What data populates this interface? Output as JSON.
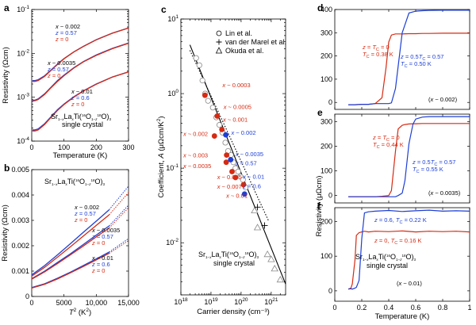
{
  "colors": {
    "black": "#000000",
    "blue": "#1d3fd6",
    "red": "#d62a12",
    "grey": "#888888"
  },
  "chart_data": [
    {
      "panel": "a",
      "type": "line",
      "ylog": true,
      "xlabel": "Temperature (K)",
      "ylabel": "Resistivity (Ωcm)",
      "xlim": [
        0,
        300
      ],
      "ylim": [
        0.0001,
        0.1
      ],
      "xticks": [
        "0",
        "100",
        "200",
        "300"
      ],
      "yticks": [
        "10^-4",
        "10^-3",
        "10^-2",
        "10^-1"
      ],
      "text": {
        "sample": "Sr1−xLaxTi(16O1−z18O)3",
        "crystal": "single crystal"
      },
      "groups": [
        {
          "x_label": "x ~ 0.002",
          "z1": "z = 0.57",
          "z0": "z = 0",
          "x": [
            2,
            10,
            20,
            40,
            60,
            80,
            100,
            130,
            160,
            200,
            250,
            300
          ],
          "series": [
            {
              "color": "blue",
              "values": [
                0.0024,
                0.0024,
                0.0025,
                0.0031,
                0.0042,
                0.0057,
                0.0076,
                0.0108,
                0.0145,
                0.0205,
                0.029,
                0.038
              ]
            },
            {
              "color": "red",
              "values": [
                0.0023,
                0.0023,
                0.0024,
                0.003,
                0.0041,
                0.0056,
                0.0075,
                0.0107,
                0.0143,
                0.0203,
                0.0288,
                0.0378
              ]
            }
          ]
        },
        {
          "x_label": "x ~ 0.0035",
          "z1": "z = 0.57",
          "z0": "z = 0",
          "x": [
            2,
            10,
            20,
            40,
            60,
            80,
            100,
            130,
            160,
            200,
            250,
            300
          ],
          "series": [
            {
              "color": "blue",
              "values": [
                0.00085,
                0.00086,
                0.00092,
                0.0012,
                0.0017,
                0.0024,
                0.0032,
                0.0047,
                0.0065,
                0.0092,
                0.013,
                0.0172
              ]
            },
            {
              "color": "red",
              "values": [
                0.00082,
                0.00083,
                0.00089,
                0.00116,
                0.00165,
                0.0023,
                0.0031,
                0.0046,
                0.0064,
                0.009,
                0.0128,
                0.017
              ]
            }
          ]
        },
        {
          "x_label": "x ~ 0.01",
          "z1": "z = 0.6",
          "z0": "z = 0",
          "x": [
            2,
            10,
            20,
            40,
            60,
            80,
            100,
            130,
            160,
            200,
            250,
            300
          ],
          "series": [
            {
              "color": "blue",
              "values": [
                0.00018,
                0.00018,
                0.00019,
                0.00025,
                0.00036,
                0.00052,
                0.0007,
                0.00102,
                0.0014,
                0.002,
                0.0029,
                0.0038
              ]
            },
            {
              "color": "red",
              "values": [
                0.00017,
                0.00017,
                0.00018,
                0.00024,
                0.00035,
                0.0005,
                0.00068,
                0.001,
                0.00138,
                0.00198,
                0.00288,
                0.00378
              ]
            }
          ]
        }
      ]
    },
    {
      "panel": "b",
      "type": "line",
      "xlabel": "T² (K²)",
      "ylabel": "Resistivity (Ωcm)",
      "xlim": [
        0,
        15000
      ],
      "ylim": [
        0,
        0.005
      ],
      "xticks": [
        "0",
        "5000",
        "10,000",
        "15,000"
      ],
      "yticks": [
        "0",
        "0.001",
        "0.002",
        "0.003",
        "0.004",
        "0.005"
      ],
      "text": {
        "sample": "Sr1−xLaxTi(16O1−z18O)3"
      },
      "groups": [
        {
          "x_label": "x ~ 0.002",
          "z1": "z = 0.57",
          "z0": "z = 0",
          "fit_end": [
            0.00435,
            0.0041
          ],
          "x": [
            0,
            2000,
            4000,
            6000,
            8000,
            10000,
            12000
          ],
          "series": [
            {
              "color": "blue",
              "values": [
                0.00085,
                0.00122,
                0.00164,
                0.00208,
                0.00253,
                0.00297,
                0.00342
              ]
            },
            {
              "color": "red",
              "values": [
                0.0008,
                0.00115,
                0.00155,
                0.00196,
                0.00238,
                0.0028,
                0.00322
              ]
            }
          ]
        },
        {
          "x_label": "x ~ 0.0035",
          "z1": "z = 0.57",
          "z0": "z = 0",
          "fit_end": [
            0.0036,
            0.0035
          ],
          "x": [
            0,
            2000,
            4000,
            6000,
            8000,
            10000,
            12000
          ],
          "series": [
            {
              "color": "blue",
              "values": [
                0.0007,
                0.001,
                0.00134,
                0.00168,
                0.00205,
                0.00242,
                0.00278
              ]
            },
            {
              "color": "red",
              "values": [
                0.00068,
                0.00097,
                0.0013,
                0.00164,
                0.00199,
                0.00235,
                0.0027
              ]
            }
          ]
        },
        {
          "x_label": "x ~ 0.01",
          "z1": "z = 0.6",
          "z0": "z = 0",
          "fit_end": [
            0.00228,
            0.0022
          ],
          "x": [
            0,
            2000,
            4000,
            6000,
            8000,
            10000,
            12000
          ],
          "series": [
            {
              "color": "blue",
              "values": [
                0.00035,
                0.0005,
                0.00072,
                0.00096,
                0.00122,
                0.00148,
                0.00175
              ]
            },
            {
              "color": "red",
              "values": [
                0.00033,
                0.00048,
                0.00069,
                0.00093,
                0.00118,
                0.00144,
                0.0017
              ]
            }
          ]
        }
      ]
    },
    {
      "panel": "c",
      "type": "scatter",
      "xlog": true,
      "ylog": true,
      "xlabel": "Carrier density (cm⁻³)",
      "ylabel": "Coefficient, A  (μΩcm/K²)",
      "xlim": [
        1e+18,
        3e+21
      ],
      "ylim": [
        0.002,
        10
      ],
      "xticks": [
        "10^18",
        "10^19",
        "10^20",
        "10^21"
      ],
      "yticks": [
        "10^-2",
        "10^-1",
        "10^0",
        "10^1"
      ],
      "legend": [
        "Lin et al.",
        "van der Marel et al.",
        "Okuda et al."
      ],
      "text": {
        "sample": "Sr1−xLaxTi(16O1−z18O)3",
        "crystal": "single crystal"
      },
      "circles": [
        [
          3.2e+18,
          3.0
        ],
        [
          4.1e+18,
          2.4
        ],
        [
          5.2e+18,
          1.5
        ],
        [
          6.4e+18,
          1.0
        ],
        [
          8e+18,
          0.8
        ],
        [
          1.15e+19,
          0.65
        ],
        [
          1.5e+19,
          0.48
        ],
        [
          1.9e+19,
          0.38
        ],
        [
          2.4e+19,
          0.3
        ],
        [
          3e+19,
          0.22
        ],
        [
          3.7e+19,
          0.17
        ],
        [
          4.6e+19,
          0.15
        ],
        [
          5.5e+19,
          0.12
        ],
        [
          6.5e+19,
          0.1
        ],
        [
          8e+19,
          0.09
        ],
        [
          9.5e+19,
          0.077
        ],
        [
          1.15e+20,
          0.07
        ],
        [
          1.4e+20,
          0.055
        ]
      ],
      "plus": [
        [
          3.5e+20,
          0.03
        ],
        [
          6e+20,
          0.017
        ]
      ],
      "triangles": [
        [
          2.8e+20,
          0.027
        ],
        [
          3.5e+20,
          0.016
        ],
        [
          7.5e+20,
          0.007
        ],
        [
          1e+21,
          0.006
        ],
        [
          1.3e+21,
          0.0045
        ],
        [
          2e+21,
          0.0032
        ]
      ],
      "red": [
        [
          6.3e+18,
          0.95
        ],
        [
          1.6e+19,
          0.5
        ],
        [
          2.3e+19,
          0.33
        ],
        [
          1.3e+19,
          0.27
        ],
        [
          3.3e+19,
          0.15
        ],
        [
          3.2e+19,
          0.12
        ],
        [
          5e+19,
          0.09
        ],
        [
          6.5e+19,
          0.075
        ],
        [
          1.2e+20,
          0.06
        ]
      ],
      "blue": [
        [
          3.1e+19,
          0.28
        ],
        [
          4.5e+19,
          0.13
        ],
        [
          1.3e+20,
          0.045
        ]
      ],
      "fit_solid": [
        [
          2e+18,
          4.5
        ],
        [
          3e+21,
          0.0028
        ]
      ],
      "fit_dotted": [
        [
          2e+18,
          3.8
        ],
        [
          8e+20,
          0.02
        ]
      ],
      "labels": [
        {
          "text": "x ~ 0.0003",
          "color": "red",
          "x": 2.4e+19,
          "y": 1.22
        },
        {
          "text": "x ~ 0.0005",
          "color": "red",
          "x": 2.6e+19,
          "y": 0.62
        },
        {
          "text": "x ~ 0.001",
          "color": "red",
          "x": 2.5e+19,
          "y": 0.42
        },
        {
          "text": "x ~ 0.002",
          "color": "blue",
          "x": 4.7e+19,
          "y": 0.28
        },
        {
          "text": "x ~ 0.002",
          "color": "red",
          "x": 1.2e+18,
          "y": 0.27
        },
        {
          "text": "x ~ 0.0035",
          "color": "blue",
          "x": 6.5e+19,
          "y": 0.145
        },
        {
          "text": "z = 0.57",
          "color": "blue",
          "x": 6.5e+19,
          "y": 0.11
        },
        {
          "text": "x ~ 0.003",
          "color": "red",
          "x": 1.2e+18,
          "y": 0.14
        },
        {
          "text": "x ~ 0.0035",
          "color": "red",
          "x": 1.2e+18,
          "y": 0.1
        },
        {
          "text": "x ~ 0.005",
          "color": "red",
          "x": 1.6e+19,
          "y": 0.071
        },
        {
          "text": "x ~ 0.007",
          "color": "red",
          "x": 1.6e+19,
          "y": 0.053
        },
        {
          "text": "x ~ 0.01",
          "color": "blue",
          "x": 1.15e+20,
          "y": 0.072
        },
        {
          "text": "z = 0.6",
          "color": "blue",
          "x": 1.15e+20,
          "y": 0.054
        },
        {
          "text": "x ~ 0.01",
          "color": "red",
          "x": 3.2e+19,
          "y": 0.04
        }
      ]
    },
    {
      "panel": "d",
      "type": "line",
      "xlim": [
        0,
        1
      ],
      "ylim": [
        -30,
        400
      ],
      "yticks": [
        "0",
        "100",
        "200",
        "300",
        "400"
      ],
      "ann": {
        "text": "(x ~ 0.002)"
      },
      "red_label": [
        "z = 0",
        "TC = 0.38 K"
      ],
      "blue_label": [
        "z = 0.57",
        "TC = 0.50 K"
      ],
      "x": [
        0.1,
        0.15,
        0.2,
        0.25,
        0.3,
        0.35,
        0.38,
        0.4,
        0.42,
        0.45,
        0.5,
        0.55,
        0.6,
        0.65,
        0.7,
        0.8,
        0.9,
        1.0
      ],
      "series": [
        {
          "color": "red",
          "values": [
            -10,
            -10,
            -8,
            -8,
            -5,
            20,
            150,
            260,
            290,
            295,
            295,
            296,
            296,
            297,
            297,
            298,
            298,
            298
          ]
        },
        {
          "color": "blue",
          "values": [
            -10,
            -10,
            -8,
            -8,
            -5,
            -5,
            -5,
            -5,
            -2,
            60,
            300,
            385,
            393,
            395,
            396,
            397,
            397,
            397
          ]
        }
      ]
    },
    {
      "panel": "e",
      "type": "line",
      "ylabel": "Resistivity (μΩcm)",
      "xlim": [
        0,
        1
      ],
      "ylim": [
        -30,
        330
      ],
      "yticks": [
        "0",
        "100",
        "200",
        "300"
      ],
      "ann": {
        "text": "(x ~ 0.0035)"
      },
      "red_label": [
        "z = 0",
        "TC = 0.44 K"
      ],
      "blue_label": [
        "z = 0.57",
        "TC = 0.55 K"
      ],
      "x": [
        0.1,
        0.2,
        0.3,
        0.35,
        0.4,
        0.42,
        0.45,
        0.47,
        0.5,
        0.52,
        0.55,
        0.58,
        0.6,
        0.65,
        0.7,
        0.8,
        0.9,
        1.0
      ],
      "series": [
        {
          "color": "red",
          "values": [
            -5,
            -5,
            -5,
            -3,
            0,
            20,
            180,
            270,
            285,
            288,
            290,
            291,
            291,
            292,
            292,
            292,
            292,
            292
          ]
        },
        {
          "color": "blue",
          "values": [
            -5,
            -5,
            -5,
            -5,
            -5,
            -5,
            -5,
            0,
            10,
            60,
            210,
            290,
            310,
            318,
            320,
            320,
            320,
            320
          ]
        }
      ]
    },
    {
      "panel": "f",
      "type": "line",
      "xlabel": "Temperature (K)",
      "xlim": [
        0,
        1
      ],
      "ylim": [
        -30,
        240
      ],
      "xticks": [
        "0",
        "0.2",
        "0.4",
        "0.6",
        "0.8",
        "1"
      ],
      "yticks": [
        "0",
        "100",
        "200"
      ],
      "ann": {
        "text": "(x ~ 0.01)"
      },
      "red_label": [
        "z = 0, TC = 0.16 K"
      ],
      "blue_label": [
        "z = 0.6, TC = 0.22 K"
      ],
      "sample": {
        "text": "Sr1−xLaxTi(16O1−z18O)3"
      },
      "crystal": "single crystal",
      "x": [
        0.1,
        0.12,
        0.13,
        0.15,
        0.16,
        0.18,
        0.2,
        0.22,
        0.25,
        0.3,
        0.4,
        0.5,
        0.6,
        0.7,
        0.8,
        0.9,
        1.0
      ],
      "series": [
        {
          "color": "red",
          "values": [
            5,
            8,
            20,
            90,
            160,
            168,
            170,
            172,
            170,
            172,
            171,
            173,
            170,
            172,
            171,
            172,
            170
          ]
        },
        {
          "color": "blue",
          "values": [
            5,
            6,
            5,
            8,
            10,
            30,
            150,
            225,
            228,
            230,
            232,
            229,
            231,
            233,
            230,
            231,
            230
          ]
        }
      ]
    }
  ]
}
